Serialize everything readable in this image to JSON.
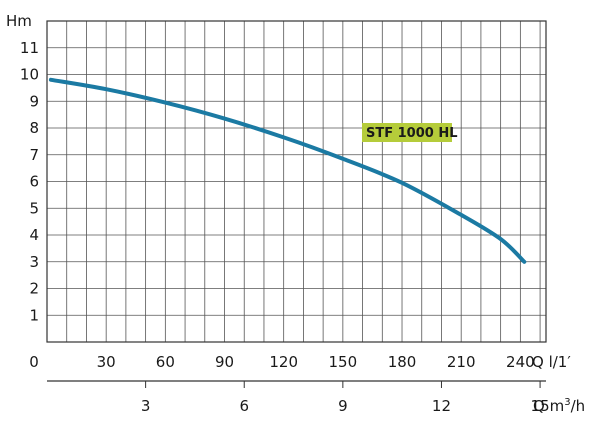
{
  "chart_data": {
    "type": "line",
    "y_unit": "Hm",
    "x_unit_primary": "Q l/1′",
    "x_unit_secondary_main": "Q m",
    "x_unit_secondary_sup": "3",
    "x_unit_secondary_tail": "/h",
    "xlim": [
      0,
      253
    ],
    "ylim": [
      0,
      12
    ],
    "x_ticks_primary": [
      0,
      30,
      60,
      90,
      120,
      150,
      180,
      210,
      240
    ],
    "x_ticks_secondary": [
      3,
      6,
      9,
      12,
      15
    ],
    "y_ticks": [
      1,
      2,
      3,
      4,
      5,
      6,
      7,
      8,
      9,
      10,
      11
    ],
    "grid": true,
    "curve_color": "#1b7aa3",
    "label_bg_color": "#b5cc3a",
    "series": [
      {
        "name": "STF 1000 HL",
        "x": [
          2,
          30,
          60,
          90,
          120,
          150,
          180,
          210,
          230,
          242
        ],
        "y": [
          9.8,
          9.45,
          8.95,
          8.35,
          7.65,
          6.85,
          5.95,
          4.75,
          3.85,
          3.0
        ]
      }
    ]
  }
}
